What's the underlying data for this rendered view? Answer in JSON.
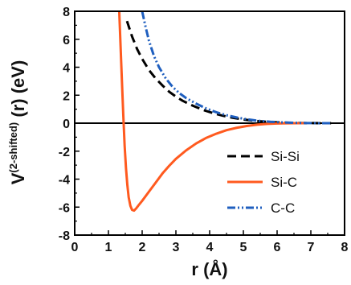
{
  "chart_data": {
    "type": "line",
    "xlabel": "r (Å)",
    "ylabel_main": "V",
    "ylabel_sup": "(2-shifted)",
    "ylabel_tail": " (r) (eV)",
    "xlim": [
      0,
      8
    ],
    "ylim": [
      -8,
      8
    ],
    "xticks": [
      0,
      1,
      2,
      3,
      4,
      5,
      6,
      7,
      8
    ],
    "yticks": [
      -8,
      -6,
      -4,
      -2,
      0,
      2,
      4,
      6,
      8
    ],
    "legend_position": "right",
    "series": [
      {
        "name": "Si-Si",
        "color": "#000000",
        "dash": "dashed",
        "x": [
          1.55,
          1.7,
          1.85,
          2.0,
          2.2,
          2.4,
          2.6,
          2.8,
          3.0,
          3.2,
          3.5,
          3.8,
          4.1,
          4.4,
          4.7,
          5.0,
          5.4,
          5.8,
          6.2,
          6.6,
          7.0,
          7.4,
          7.6
        ],
        "y": [
          7.3,
          6.2,
          5.3,
          4.6,
          3.8,
          3.2,
          2.7,
          2.25,
          1.9,
          1.6,
          1.25,
          0.95,
          0.72,
          0.53,
          0.38,
          0.26,
          0.15,
          0.08,
          0.04,
          0.015,
          0.005,
          0.0,
          0.0
        ]
      },
      {
        "name": "Si-C",
        "color": "#ff5a1f",
        "dash": "solid",
        "x": [
          1.32,
          1.36,
          1.4,
          1.44,
          1.48,
          1.52,
          1.56,
          1.6,
          1.65,
          1.7,
          1.76,
          1.82,
          1.9,
          2.0,
          2.2,
          2.4,
          2.6,
          2.8,
          3.0,
          3.3,
          3.6,
          3.9,
          4.2,
          4.5,
          4.8,
          5.1,
          5.4,
          5.7,
          6.0,
          6.3,
          6.6,
          6.8
        ],
        "y": [
          8.0,
          5.5,
          3.0,
          0.6,
          -1.6,
          -3.2,
          -4.4,
          -5.3,
          -5.9,
          -6.2,
          -6.25,
          -6.1,
          -5.85,
          -5.55,
          -4.9,
          -4.25,
          -3.6,
          -3.05,
          -2.55,
          -1.95,
          -1.45,
          -1.05,
          -0.75,
          -0.5,
          -0.33,
          -0.2,
          -0.11,
          -0.05,
          -0.02,
          -0.005,
          0.0,
          0.0
        ]
      },
      {
        "name": "C-C",
        "color": "#1f5fbf",
        "dash": "dashdotdot",
        "x": [
          2.0,
          2.1,
          2.2,
          2.35,
          2.5,
          2.7,
          2.9,
          3.1,
          3.3,
          3.6,
          3.9,
          4.2,
          4.5,
          4.8,
          5.1,
          5.4,
          5.8,
          6.2,
          6.6,
          7.0,
          7.4,
          7.6
        ],
        "y": [
          8.0,
          6.9,
          5.9,
          4.8,
          4.0,
          3.2,
          2.6,
          2.15,
          1.8,
          1.4,
          1.05,
          0.78,
          0.57,
          0.41,
          0.28,
          0.18,
          0.1,
          0.05,
          0.02,
          0.005,
          0.0,
          0.0
        ]
      }
    ]
  }
}
